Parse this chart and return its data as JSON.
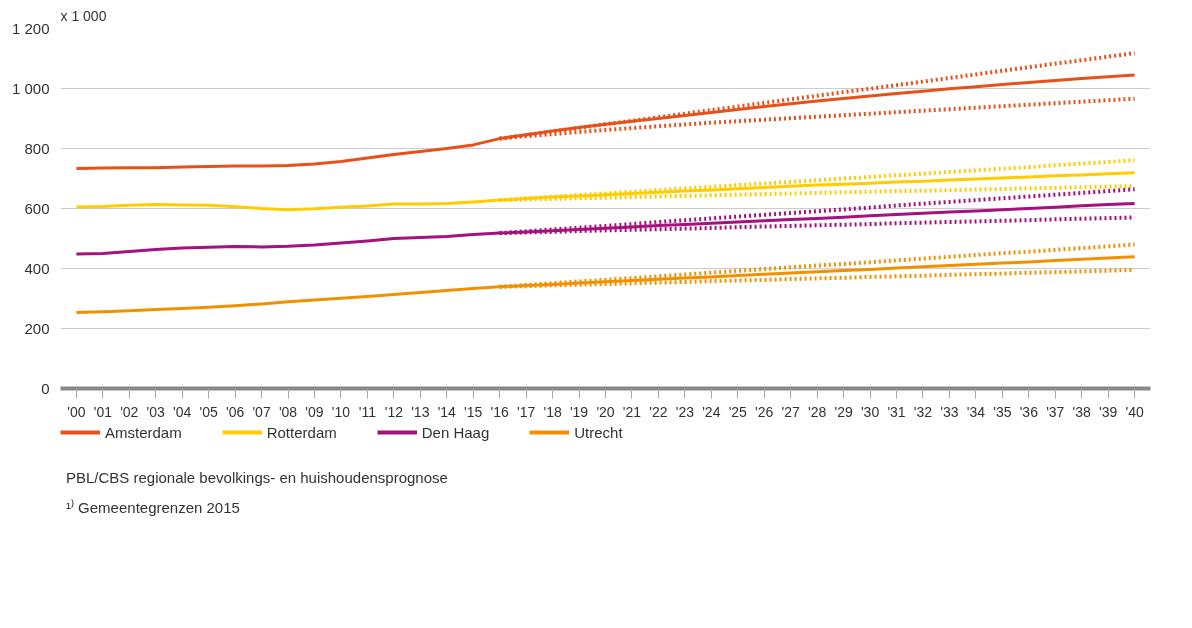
{
  "chart_data": {
    "type": "line",
    "ylabel": "x 1 000",
    "categories": [
      "'00",
      "'01",
      "'02",
      "'03",
      "'04",
      "'05",
      "'06",
      "'07",
      "'08",
      "'09",
      "'10",
      "'11",
      "'12",
      "'13",
      "'14",
      "'15",
      "'16",
      "'17",
      "'18",
      "'19",
      "'20",
      "'21",
      "'22",
      "'23",
      "'24",
      "'25",
      "'26",
      "'27",
      "'28",
      "'29",
      "'30",
      "'31",
      "'32",
      "'33",
      "'34",
      "'35",
      "'36",
      "'37",
      "'38",
      "'39",
      "'40"
    ],
    "ylim": [
      0,
      1200
    ],
    "yticks": [
      0,
      {
        "value": 200,
        "label": "200"
      },
      400,
      600,
      800,
      {
        "value": 1000,
        "label": "1 000"
      },
      {
        "value": 1200,
        "label": "1 200"
      }
    ],
    "grid": "y",
    "legend": "bottom",
    "line_style": "solid",
    "series": [
      {
        "name": "Amsterdam",
        "color": "#e8501a",
        "values": [
          733,
          735,
          736,
          736,
          738,
          740,
          742,
          742,
          743,
          748,
          757,
          768,
          780,
          790,
          800,
          812,
          833,
          846,
          858,
          870,
          881,
          891,
          900,
          910,
          920,
          930,
          940,
          949,
          958,
          967,
          975,
          983,
          991,
          999,
          1006,
          1013,
          1020,
          1027,
          1033,
          1039,
          1045
        ]
      },
      {
        "name": "Rotterdam",
        "color": "#ffcc00",
        "values": [
          605,
          607,
          611,
          613,
          612,
          611,
          606,
          600,
          596,
          599,
          604,
          608,
          615,
          615,
          617,
          622,
          628,
          633,
          638,
          642,
          646,
          650,
          654,
          658,
          662,
          666,
          670,
          674,
          678,
          681,
          684,
          688,
          691,
          695,
          698,
          702,
          705,
          709,
          712,
          716,
          719
        ]
      },
      {
        "name": "Den Haag",
        "color": "#a5117e",
        "values": [
          448,
          450,
          457,
          463,
          468,
          471,
          473,
          472,
          474,
          478,
          485,
          492,
          500,
          503,
          507,
          513,
          518,
          522,
          526,
          530,
          534,
          538,
          543,
          547,
          551,
          555,
          559,
          563,
          567,
          571,
          576,
          580,
          584,
          588,
          592,
          596,
          600,
          604,
          609,
          613,
          617
        ]
      },
      {
        "name": "Utrecht",
        "color": "#f39000",
        "values": [
          253,
          256,
          259,
          263,
          267,
          271,
          276,
          282,
          289,
          295,
          301,
          307,
          313,
          320,
          327,
          333,
          339,
          343,
          347,
          352,
          356,
          360,
          364,
          368,
          372,
          377,
          381,
          385,
          389,
          393,
          397,
          402,
          406,
          410,
          414,
          418,
          422,
          427,
          431,
          435,
          439
        ]
      },
      {
        "color": "#e8501a",
        "line_style": "dotted",
        "values": [
          null,
          null,
          null,
          null,
          null,
          null,
          null,
          null,
          null,
          null,
          null,
          null,
          null,
          null,
          null,
          null,
          833,
          845,
          857,
          869,
          881,
          892,
          904,
          916,
          928,
          940,
          952,
          964,
          976,
          988,
          999,
          1011,
          1023,
          1035,
          1047,
          1059,
          1071,
          1083,
          1094,
          1106,
          1118
        ]
      },
      {
        "color": "#e8501a",
        "line_style": "dotted",
        "values": [
          null,
          null,
          null,
          null,
          null,
          null,
          null,
          null,
          null,
          null,
          null,
          null,
          null,
          null,
          null,
          null,
          833,
          841,
          848,
          855,
          862,
          868,
          874,
          880,
          886,
          891,
          896,
          901,
          906,
          911,
          916,
          921,
          926,
          931,
          936,
          941,
          946,
          951,
          956,
          961,
          966
        ]
      },
      {
        "color": "#ffcc00",
        "line_style": "dotted",
        "values": [
          null,
          null,
          null,
          null,
          null,
          null,
          null,
          null,
          null,
          null,
          null,
          null,
          null,
          null,
          null,
          null,
          628,
          634,
          639,
          645,
          650,
          656,
          661,
          667,
          672,
          678,
          683,
          689,
          694,
          700,
          705,
          711,
          716,
          722,
          727,
          733,
          738,
          744,
          750,
          755,
          761
        ]
      },
      {
        "color": "#ffcc00",
        "line_style": "dotted",
        "values": [
          null,
          null,
          null,
          null,
          null,
          null,
          null,
          null,
          null,
          null,
          null,
          null,
          null,
          null,
          null,
          null,
          628,
          630,
          632,
          634,
          636,
          638,
          640,
          642,
          644,
          646,
          648,
          650,
          652,
          654,
          656,
          658,
          659,
          661,
          663,
          665,
          667,
          669,
          671,
          673,
          675
        ]
      },
      {
        "color": "#a5117e",
        "line_style": "dotted",
        "values": [
          null,
          null,
          null,
          null,
          null,
          null,
          null,
          null,
          null,
          null,
          null,
          null,
          null,
          null,
          null,
          null,
          518,
          524,
          530,
          536,
          542,
          548,
          555,
          561,
          567,
          573,
          579,
          585,
          591,
          597,
          603,
          610,
          616,
          622,
          628,
          634,
          640,
          646,
          652,
          658,
          664
        ]
      },
      {
        "color": "#a5117e",
        "line_style": "dotted",
        "values": [
          null,
          null,
          null,
          null,
          null,
          null,
          null,
          null,
          null,
          null,
          null,
          null,
          null,
          null,
          null,
          null,
          518,
          520,
          522,
          525,
          527,
          529,
          531,
          533,
          535,
          538,
          540,
          542,
          544,
          546,
          548,
          551,
          553,
          555,
          557,
          559,
          561,
          564,
          566,
          568,
          570
        ]
      },
      {
        "color": "#f39000",
        "line_style": "dotted",
        "values": [
          null,
          null,
          null,
          null,
          null,
          null,
          null,
          null,
          null,
          null,
          null,
          null,
          null,
          null,
          null,
          null,
          339,
          345,
          351,
          357,
          362,
          368,
          374,
          380,
          386,
          392,
          398,
          404,
          410,
          415,
          421,
          427,
          433,
          439,
          445,
          451,
          456,
          462,
          468,
          474,
          480
        ]
      },
      {
        "color": "#f39000",
        "line_style": "dotted",
        "values": [
          null,
          null,
          null,
          null,
          null,
          null,
          null,
          null,
          null,
          null,
          null,
          null,
          null,
          null,
          null,
          null,
          339,
          341,
          344,
          346,
          348,
          351,
          353,
          355,
          358,
          360,
          362,
          365,
          367,
          369,
          372,
          374,
          376,
          379,
          381,
          383,
          386,
          388,
          390,
          393,
          395
        ]
      }
    ],
    "annotations": [
      "PBL/CBS regionale bevolkings- en huishoudensprognose",
      "¹⁾ Gemeentegrenzen 2015"
    ]
  }
}
